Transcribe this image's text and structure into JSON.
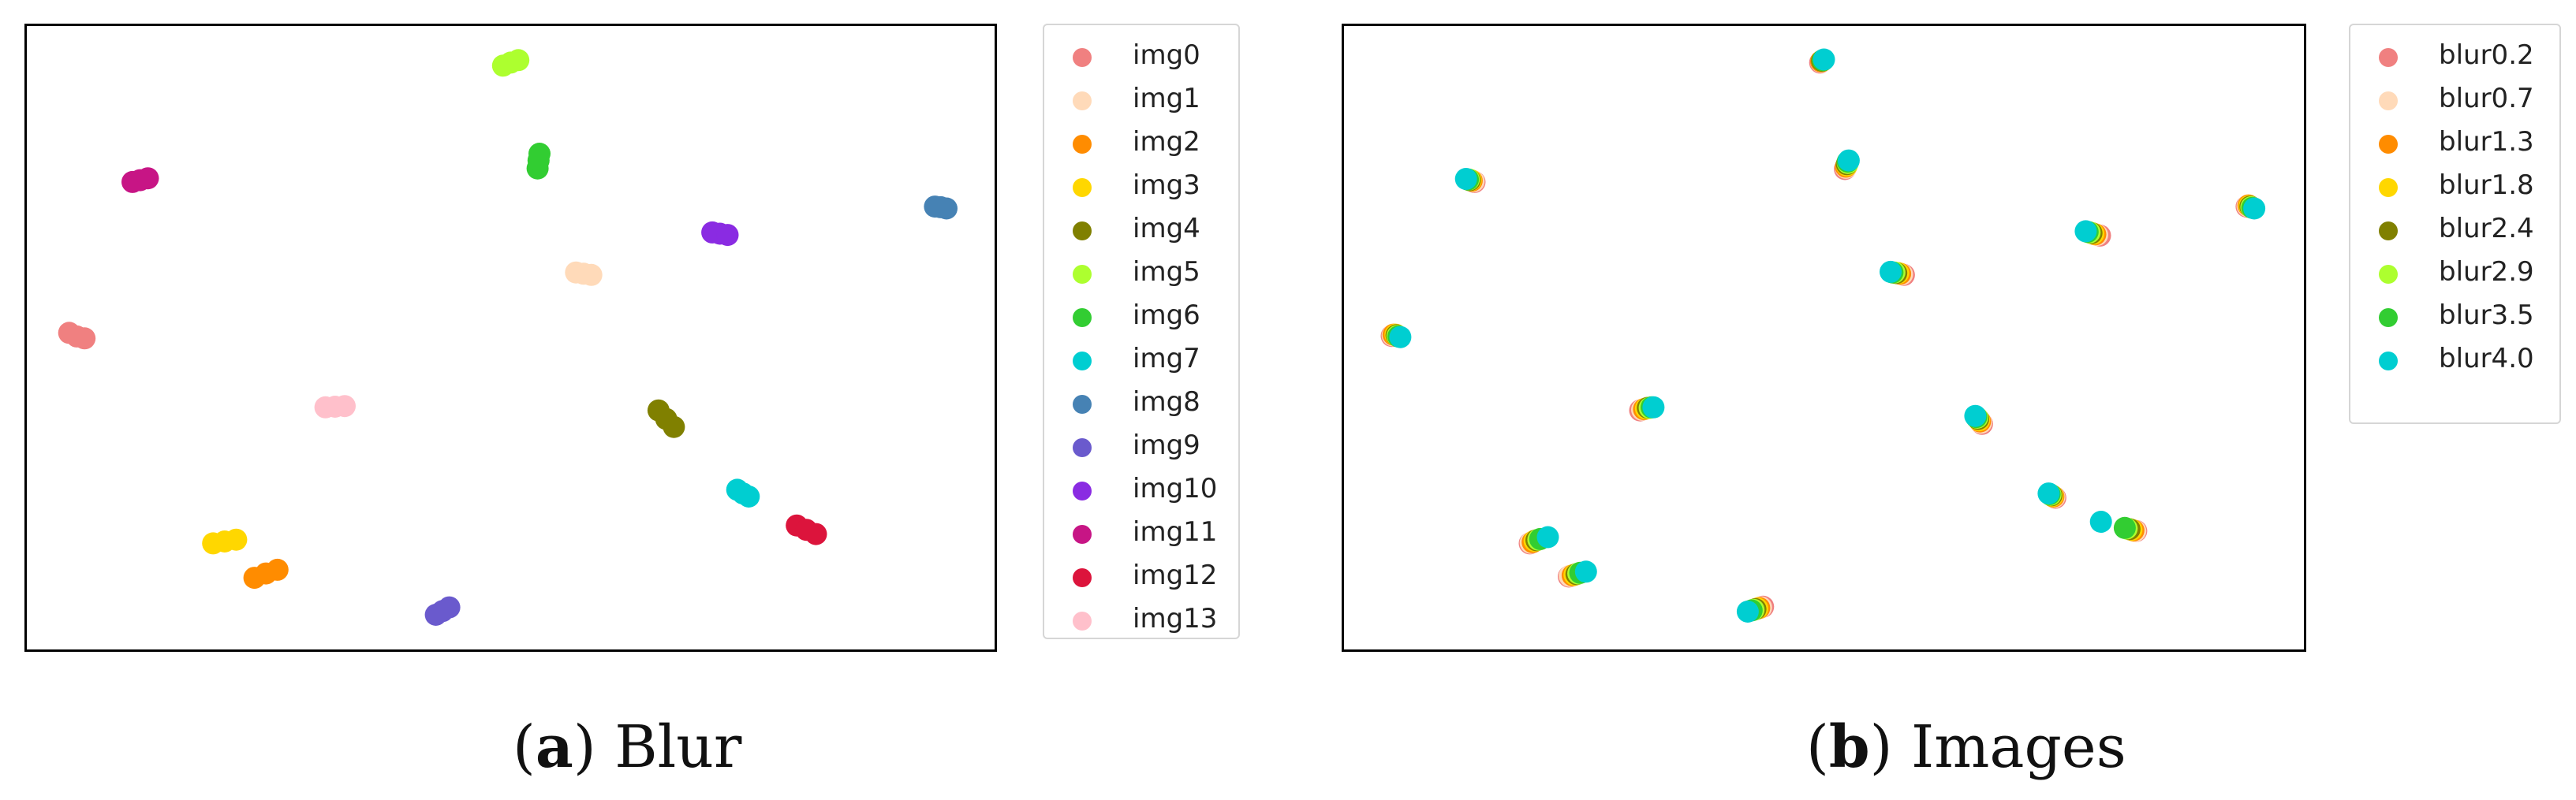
{
  "panels": [
    {
      "caption_letter": "a",
      "caption_text": "Blur",
      "chart_data": {
        "type": "scatter",
        "xlim": [
          0,
          100
        ],
        "ylim": [
          0,
          100
        ],
        "grid": false,
        "ticks": false,
        "legend_placement": "outside-right",
        "series": [
          {
            "name": "img0",
            "color": "#f08080",
            "points": [
              [
                4.0,
                50.8
              ],
              [
                4.8,
                50.2
              ],
              [
                5.6,
                49.9
              ]
            ]
          },
          {
            "name": "img1",
            "color": "#ffdab9",
            "points": [
              [
                56.8,
                60.6
              ],
              [
                57.6,
                60.4
              ],
              [
                58.4,
                60.2
              ]
            ]
          },
          {
            "name": "img2",
            "color": "#ff8c00",
            "points": [
              [
                23.3,
                11.0
              ],
              [
                24.5,
                11.7
              ],
              [
                25.7,
                12.3
              ]
            ]
          },
          {
            "name": "img3",
            "color": "#ffd700",
            "points": [
              [
                19.0,
                16.6
              ],
              [
                20.2,
                16.9
              ],
              [
                21.4,
                17.2
              ]
            ]
          },
          {
            "name": "img4",
            "color": "#808000",
            "points": [
              [
                65.4,
                38.2
              ],
              [
                66.2,
                36.8
              ],
              [
                67.0,
                35.5
              ]
            ]
          },
          {
            "name": "img5",
            "color": "#adff2f",
            "points": [
              [
                49.2,
                94.2
              ],
              [
                50.0,
                94.7
              ],
              [
                50.8,
                95.1
              ]
            ]
          },
          {
            "name": "img6",
            "color": "#32cd32",
            "points": [
              [
                52.8,
                77.5
              ],
              [
                52.9,
                78.8
              ],
              [
                53.0,
                79.9
              ]
            ]
          },
          {
            "name": "img7",
            "color": "#00ced1",
            "points": [
              [
                73.6,
                25.3
              ],
              [
                74.2,
                24.7
              ],
              [
                74.8,
                24.2
              ]
            ]
          },
          {
            "name": "img8",
            "color": "#4682b4",
            "points": [
              [
                94.2,
                71.3
              ],
              [
                94.8,
                71.2
              ],
              [
                95.4,
                71.0
              ]
            ]
          },
          {
            "name": "img9",
            "color": "#6a5acd",
            "points": [
              [
                42.2,
                5.0
              ],
              [
                42.9,
                5.6
              ],
              [
                43.6,
                6.2
              ]
            ]
          },
          {
            "name": "img10",
            "color": "#8a2be2",
            "points": [
              [
                71.0,
                67.1
              ],
              [
                71.8,
                66.9
              ],
              [
                72.6,
                66.7
              ]
            ]
          },
          {
            "name": "img11",
            "color": "#c71585",
            "points": [
              [
                10.6,
                75.3
              ],
              [
                11.4,
                75.6
              ],
              [
                12.2,
                75.9
              ]
            ]
          },
          {
            "name": "img12",
            "color": "#dc143c",
            "points": [
              [
                79.8,
                19.5
              ],
              [
                80.8,
                18.8
              ],
              [
                81.8,
                18.1
              ]
            ]
          },
          {
            "name": "img13",
            "color": "#ffc0cb",
            "points": [
              [
                30.7,
                38.7
              ],
              [
                31.7,
                38.8
              ],
              [
                32.7,
                38.9
              ]
            ]
          }
        ]
      }
    },
    {
      "caption_letter": "b",
      "caption_text": "Images",
      "chart_data": {
        "type": "scatter",
        "xlim": [
          0,
          100
        ],
        "ylim": [
          0,
          100
        ],
        "grid": false,
        "ticks": false,
        "legend_placement": "outside-right",
        "series": [
          {
            "name": "blur0.2",
            "color": "#f08080",
            "points": [
              [
                49.6,
                94.7
              ],
              [
                52.2,
                77.4
              ],
              [
                79.0,
                66.6
              ],
              [
                58.4,
                60.2
              ],
              [
                4.6,
                50.3
              ],
              [
                30.7,
                38.2
              ],
              [
                66.6,
                36.0
              ],
              [
                74.3,
                24.0
              ],
              [
                82.8,
                18.6
              ],
              [
                19.1,
                16.6
              ],
              [
                23.2,
                11.2
              ],
              [
                43.6,
                6.3
              ],
              [
                13.3,
                75.3
              ],
              [
                94.4,
                71.3
              ]
            ]
          },
          {
            "name": "blur0.7",
            "color": "#ffdab9",
            "points": [
              [
                49.7,
                94.8
              ],
              [
                52.3,
                77.6
              ],
              [
                78.7,
                66.7
              ],
              [
                58.2,
                60.3
              ],
              [
                4.7,
                50.4
              ],
              [
                30.9,
                38.3
              ],
              [
                66.5,
                36.2
              ],
              [
                74.2,
                24.1
              ],
              [
                82.7,
                18.6
              ],
              [
                19.2,
                16.7
              ],
              [
                23.3,
                11.3
              ],
              [
                43.4,
                6.2
              ],
              [
                13.2,
                75.4
              ],
              [
                94.5,
                71.4
              ]
            ]
          },
          {
            "name": "blur1.3",
            "color": "#ff8c00",
            "points": [
              [
                49.7,
                94.9
              ],
              [
                52.3,
                77.8
              ],
              [
                78.5,
                66.8
              ],
              [
                58.0,
                60.4
              ],
              [
                4.8,
                50.5
              ],
              [
                31.1,
                38.4
              ],
              [
                66.4,
                36.4
              ],
              [
                74.1,
                24.2
              ],
              [
                82.5,
                18.7
              ],
              [
                19.4,
                16.8
              ],
              [
                23.6,
                11.4
              ],
              [
                43.2,
                6.1
              ],
              [
                13.0,
                75.5
              ],
              [
                94.6,
                71.5
              ]
            ]
          },
          {
            "name": "blur1.8",
            "color": "#ffd700",
            "points": [
              [
                49.8,
                95.0
              ],
              [
                52.4,
                78.0
              ],
              [
                78.3,
                66.9
              ],
              [
                57.8,
                60.5
              ],
              [
                5.0,
                50.5
              ],
              [
                31.3,
                38.5
              ],
              [
                66.3,
                36.6
              ],
              [
                74.0,
                24.3
              ],
              [
                82.3,
                18.8
              ],
              [
                19.6,
                17.0
              ],
              [
                23.8,
                11.5
              ],
              [
                43.0,
                6.0
              ],
              [
                12.9,
                75.6
              ],
              [
                94.7,
                71.4
              ]
            ]
          },
          {
            "name": "blur2.4",
            "color": "#808000",
            "points": [
              [
                49.8,
                95.0
              ],
              [
                52.4,
                78.2
              ],
              [
                78.1,
                67.0
              ],
              [
                57.6,
                60.5
              ],
              [
                5.1,
                50.4
              ],
              [
                31.5,
                38.6
              ],
              [
                66.2,
                36.8
              ],
              [
                73.9,
                24.4
              ],
              [
                82.1,
                18.9
              ],
              [
                19.8,
                17.1
              ],
              [
                24.0,
                11.6
              ],
              [
                42.8,
                5.9
              ],
              [
                12.8,
                75.6
              ],
              [
                94.8,
                71.3
              ]
            ]
          },
          {
            "name": "blur2.9",
            "color": "#adff2f",
            "points": [
              [
                49.9,
                95.1
              ],
              [
                52.5,
                78.4
              ],
              [
                77.9,
                67.1
              ],
              [
                57.4,
                60.6
              ],
              [
                5.2,
                50.3
              ],
              [
                31.7,
                38.6
              ],
              [
                66.1,
                37.0
              ],
              [
                73.8,
                24.5
              ],
              [
                81.8,
                19.0
              ],
              [
                20.0,
                17.2
              ],
              [
                24.2,
                11.7
              ],
              [
                42.6,
                5.8
              ],
              [
                12.7,
                75.7
              ],
              [
                94.9,
                71.2
              ]
            ]
          },
          {
            "name": "blur3.5",
            "color": "#32cd32",
            "points": [
              [
                49.9,
                95.1
              ],
              [
                52.5,
                78.6
              ],
              [
                77.7,
                67.2
              ],
              [
                57.2,
                60.6
              ],
              [
                5.3,
                50.2
              ],
              [
                31.9,
                38.7
              ],
              [
                66.0,
                37.1
              ],
              [
                73.7,
                24.6
              ],
              [
                81.6,
                19.1
              ],
              [
                20.2,
                17.3
              ],
              [
                24.4,
                11.8
              ],
              [
                42.4,
                5.7
              ],
              [
                12.6,
                75.7
              ],
              [
                95.0,
                71.1
              ]
            ]
          },
          {
            "name": "blur4.0",
            "color": "#00ced1",
            "points": [
              [
                50.0,
                95.2
              ],
              [
                52.6,
                78.8
              ],
              [
                77.5,
                67.3
              ],
              [
                57.0,
                60.7
              ],
              [
                5.5,
                50.1
              ],
              [
                32.1,
                38.7
              ],
              [
                65.9,
                37.3
              ],
              [
                73.6,
                24.7
              ],
              [
                79.1,
                20.1
              ],
              [
                21.0,
                17.6
              ],
              [
                25.0,
                12.0
              ],
              [
                42.0,
                5.5
              ],
              [
                12.4,
                75.8
              ],
              [
                95.2,
                71.0
              ]
            ]
          }
        ]
      }
    }
  ]
}
